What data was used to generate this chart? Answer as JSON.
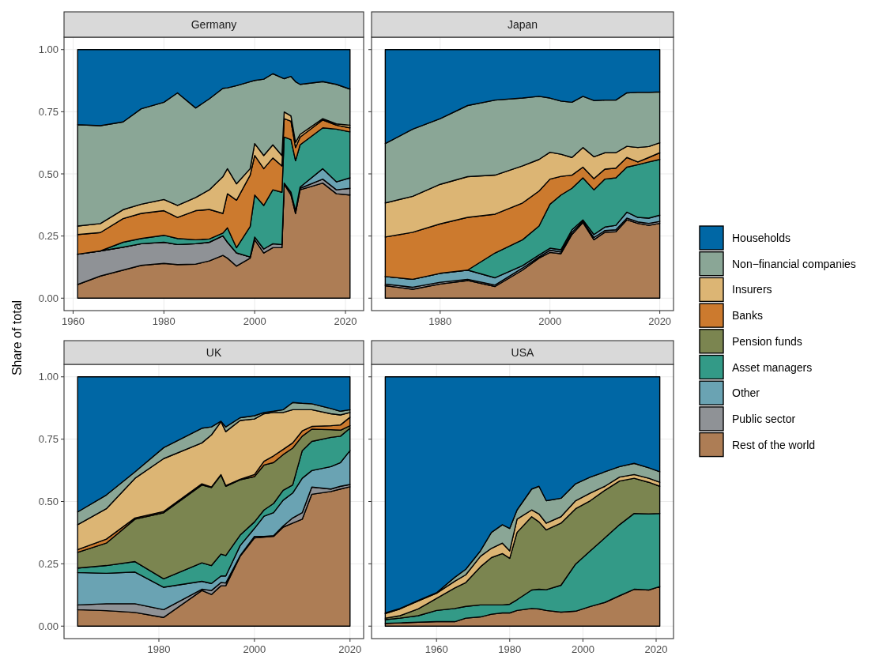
{
  "chart_data": [
    {
      "type": "area",
      "stacked": true,
      "title": "Germany",
      "ylabel": "Share of total",
      "grid": true,
      "xlim": [
        1958,
        2024
      ],
      "xticks": [
        1960,
        1980,
        2000,
        2020
      ],
      "ylim": [
        -0.05,
        1.05
      ],
      "yticks": [
        {
          "value": 0,
          "label": "0.00"
        },
        {
          "value": 0.25,
          "label": "0.25"
        },
        {
          "value": 0.5,
          "label": "0.50"
        },
        {
          "value": 0.75,
          "label": "0.75"
        },
        {
          "value": 1,
          "label": "1.00"
        }
      ],
      "x": [
        1961,
        1966,
        1971,
        1975,
        1980,
        1983,
        1987,
        1990,
        1993,
        1994,
        1996,
        1999,
        2000,
        2002,
        2004,
        2006,
        2006.5,
        2008,
        2009,
        2010,
        2015,
        2018,
        2021
      ],
      "series": [
        {
          "color": "#ad7d55",
          "values": [
            0.055,
            0.089,
            0.113,
            0.132,
            0.14,
            0.135,
            0.137,
            0.15,
            0.172,
            0.161,
            0.129,
            0.161,
            0.235,
            0.182,
            0.203,
            0.203,
            0.458,
            0.415,
            0.341,
            0.436,
            0.463,
            0.42,
            0.415
          ]
        },
        {
          "color": "#8f9296",
          "values": [
            0.122,
            0.101,
            0.092,
            0.087,
            0.085,
            0.081,
            0.082,
            0.075,
            0.079,
            0.064,
            0.053,
            0.005,
            0.011,
            0.016,
            0.016,
            0.013,
            0.005,
            0.011,
            0.011,
            0.006,
            0.016,
            0.016,
            0.027
          ]
        },
        {
          "color": "#6aa3b3",
          "values": [
            0,
            0,
            0,
            0,
            0,
            0,
            0,
            0,
            0,
            0,
            0,
            0,
            0,
            0,
            0,
            0,
            0,
            0,
            0,
            0.005,
            0.042,
            0.032,
            0.042
          ]
        },
        {
          "color": "#339a87",
          "values": [
            0,
            0,
            0.02,
            0.021,
            0.028,
            0.024,
            0.016,
            0.013,
            0.011,
            0.058,
            0.021,
            0.122,
            0.169,
            0.175,
            0.217,
            0.21,
            0.185,
            0.212,
            0.201,
            0.17,
            0.164,
            0.212,
            0.185
          ]
        },
        {
          "color": "#cc7a2e",
          "values": [
            0.079,
            0.074,
            0.095,
            0.101,
            0.099,
            0.085,
            0.117,
            0.119,
            0.079,
            0.137,
            0.191,
            0.207,
            0.159,
            0.148,
            0.128,
            0.106,
            0.074,
            0.074,
            0.053,
            0.031,
            0.032,
            0.016,
            0.016
          ]
        },
        {
          "color": "#dcb574",
          "values": [
            0.034,
            0.036,
            0.036,
            0.037,
            0.045,
            0.048,
            0.053,
            0.079,
            0.148,
            0.101,
            0.066,
            0.026,
            0.048,
            0.053,
            0.053,
            0.042,
            0.027,
            0.021,
            0.021,
            0.011,
            0.005,
            0.005,
            0.011
          ]
        },
        {
          "color": "#8aa696",
          "values": [
            0.408,
            0.394,
            0.353,
            0.384,
            0.391,
            0.453,
            0.36,
            0.366,
            0.355,
            0.325,
            0.395,
            0.35,
            0.254,
            0.307,
            0.286,
            0.313,
            0.134,
            0.159,
            0.244,
            0.201,
            0.149,
            0.159,
            0.145
          ]
        },
        {
          "color": "#0067a5",
          "values": [
            0.302,
            0.306,
            0.291,
            0.238,
            0.212,
            0.174,
            0.235,
            0.198,
            0.156,
            0.154,
            0.145,
            0.129,
            0.124,
            0.119,
            0.097,
            0.113,
            0.117,
            0.108,
            0.129,
            0.14,
            0.129,
            0.14,
            0.159
          ]
        }
      ]
    },
    {
      "type": "area",
      "stacked": true,
      "title": "Japan",
      "grid": true,
      "tick_labels": "x",
      "xlim": [
        1967.5,
        2022.5
      ],
      "xticks": [
        1980,
        2000,
        2020
      ],
      "ylim": [
        -0.05,
        1.05
      ],
      "yticks": [
        {
          "value": 0,
          "label": null
        },
        {
          "value": 0.25,
          "label": null
        },
        {
          "value": 0.5,
          "label": null
        },
        {
          "value": 0.75,
          "label": null
        },
        {
          "value": 1,
          "label": null
        }
      ],
      "x": [
        1970,
        1975,
        1980,
        1985,
        1990,
        1995,
        1998,
        2000,
        2002,
        2004,
        2006,
        2008,
        2010,
        2012,
        2014,
        2016,
        2018,
        2020
      ],
      "series": [
        {
          "color": "#ad7d55",
          "values": [
            0.05,
            0.036,
            0.057,
            0.071,
            0.047,
            0.113,
            0.161,
            0.184,
            0.179,
            0.256,
            0.304,
            0.235,
            0.265,
            0.267,
            0.315,
            0.301,
            0.293,
            0.301
          ]
        },
        {
          "color": "#8f9296",
          "values": [
            0.007,
            0.008,
            0.007,
            0.005,
            0.006,
            0.008,
            0.005,
            0.009,
            0.007,
            0.009,
            0.005,
            0.009,
            0.007,
            0.008,
            0.007,
            0.006,
            0.008,
            0.008
          ]
        },
        {
          "color": "#6aa3b3",
          "values": [
            0.03,
            0.032,
            0.036,
            0.037,
            0.029,
            0.01,
            0.008,
            0.008,
            0.009,
            0.01,
            0.006,
            0.012,
            0.014,
            0.018,
            0.024,
            0.018,
            0.021,
            0.025
          ]
        },
        {
          "color": "#339a87",
          "values": [
            0,
            0,
            0,
            0,
            0.1,
            0.104,
            0.116,
            0.177,
            0.22,
            0.167,
            0.169,
            0.18,
            0.193,
            0.191,
            0.181,
            0.212,
            0.226,
            0.224
          ]
        },
        {
          "color": "#cc7a2e",
          "values": [
            0.159,
            0.189,
            0.199,
            0.212,
            0.156,
            0.148,
            0.141,
            0.101,
            0.075,
            0.053,
            0.043,
            0.045,
            0.04,
            0.039,
            0.039,
            0.011,
            0.018,
            0.027
          ]
        },
        {
          "color": "#dcb574",
          "values": [
            0.137,
            0.145,
            0.159,
            0.164,
            0.157,
            0.149,
            0.127,
            0.108,
            0.089,
            0.071,
            0.079,
            0.088,
            0.066,
            0.062,
            0.045,
            0.058,
            0.044,
            0.04
          ]
        },
        {
          "color": "#8aa696",
          "values": [
            0.239,
            0.27,
            0.264,
            0.286,
            0.302,
            0.273,
            0.254,
            0.218,
            0.214,
            0.222,
            0.206,
            0.226,
            0.212,
            0.212,
            0.215,
            0.222,
            0.218,
            0.205
          ]
        },
        {
          "color": "#0067a5",
          "values": [
            0.378,
            0.32,
            0.278,
            0.225,
            0.203,
            0.195,
            0.188,
            0.195,
            0.207,
            0.212,
            0.188,
            0.205,
            0.203,
            0.203,
            0.174,
            0.172,
            0.172,
            0.17
          ]
        }
      ]
    },
    {
      "type": "area",
      "stacked": true,
      "title": "UK",
      "grid": true,
      "legend": "right",
      "xlim": [
        1960.15,
        2022.85
      ],
      "xticks": [
        1980,
        2000,
        2020
      ],
      "ylim": [
        -0.05,
        1.05
      ],
      "yticks": [
        {
          "value": 0,
          "label": "0.00"
        },
        {
          "value": 0.25,
          "label": "0.25"
        },
        {
          "value": 0.5,
          "label": "0.50"
        },
        {
          "value": 0.75,
          "label": "0.75"
        },
        {
          "value": 1,
          "label": "1.00"
        }
      ],
      "x": [
        1963,
        1969,
        1975,
        1981,
        1989,
        1991,
        1993,
        1994,
        1997,
        2000,
        2002,
        2004,
        2006,
        2008,
        2010,
        2012,
        2016,
        2018,
        2020
      ],
      "series": [
        {
          "name": "Rest of the world",
          "color": "#ad7d55",
          "values": [
            0.066,
            0.062,
            0.055,
            0.035,
            0.143,
            0.127,
            0.162,
            0.162,
            0.28,
            0.354,
            0.357,
            0.36,
            0.397,
            0.413,
            0.429,
            0.529,
            0.54,
            0.55,
            0.559
          ]
        },
        {
          "name": "Public sector",
          "color": "#8f9296",
          "values": [
            0.019,
            0.028,
            0.035,
            0.031,
            0.005,
            0.016,
            0.013,
            0.011,
            0.003,
            0.006,
            0.003,
            0.003,
            0.005,
            0.021,
            0.026,
            0.029,
            0.01,
            0.011,
            0.009
          ]
        },
        {
          "name": "Other",
          "color": "#6aa3b3",
          "values": [
            0.13,
            0.122,
            0.127,
            0.09,
            0.032,
            0.028,
            0.026,
            0.028,
            0.04,
            0.032,
            0.081,
            0.092,
            0.103,
            0.1,
            0.138,
            0.066,
            0.09,
            0.095,
            0.136
          ]
        },
        {
          "name": "Asset managers",
          "color": "#339a87",
          "values": [
            0.018,
            0.031,
            0.042,
            0.034,
            0.074,
            0.072,
            0.088,
            0.082,
            0.042,
            0.026,
            0.025,
            0.037,
            0.04,
            0.032,
            0.111,
            0.117,
            0.117,
            0.106,
            0.09
          ]
        },
        {
          "name": "Pension funds",
          "color": "#7b8550",
          "values": [
            0.063,
            0.09,
            0.17,
            0.265,
            0.312,
            0.313,
            0.317,
            0.278,
            0.222,
            0.182,
            0.18,
            0.164,
            0.143,
            0.148,
            0.058,
            0.049,
            0.031,
            0.024,
            0.01
          ]
        },
        {
          "name": "Banks",
          "color": "#cc7a2e",
          "values": [
            0.011,
            0.016,
            0.005,
            0.005,
            0.005,
            0.002,
            0.002,
            0.003,
            0.002,
            0.008,
            0.015,
            0.027,
            0.021,
            0.021,
            0.021,
            0.011,
            0.016,
            0.021,
            0.034
          ]
        },
        {
          "name": "Insurers",
          "color": "#dcb574",
          "values": [
            0.1,
            0.122,
            0.159,
            0.212,
            0.164,
            0.209,
            0.212,
            0.216,
            0.236,
            0.223,
            0.191,
            0.174,
            0.148,
            0.133,
            0.085,
            0.067,
            0.048,
            0.04,
            0.019
          ]
        },
        {
          "name": "Non−financial companies",
          "color": "#8aa696",
          "values": [
            0.051,
            0.055,
            0.026,
            0.044,
            0.059,
            0.032,
            0.002,
            0.019,
            0.011,
            0.013,
            0.005,
            0.005,
            0.011,
            0.029,
            0.026,
            0.024,
            0.021,
            0.015,
            0.011
          ]
        },
        {
          "name": "Households",
          "color": "#0067a5",
          "values": [
            0.542,
            0.474,
            0.381,
            0.284,
            0.206,
            0.201,
            0.178,
            0.201,
            0.164,
            0.156,
            0.143,
            0.138,
            0.132,
            0.103,
            0.106,
            0.108,
            0.127,
            0.138,
            0.132
          ]
        }
      ]
    },
    {
      "type": "area",
      "stacked": true,
      "title": "USA",
      "grid": true,
      "tick_labels": "x",
      "xlim": [
        1942.25,
        2024.75
      ],
      "xticks": [
        1960,
        1980,
        2000,
        2020
      ],
      "ylim": [
        -0.05,
        1.05
      ],
      "yticks": [
        {
          "value": 0,
          "label": null
        },
        {
          "value": 0.25,
          "label": null
        },
        {
          "value": 0.5,
          "label": null
        },
        {
          "value": 0.75,
          "label": null
        },
        {
          "value": 1,
          "label": null
        }
      ],
      "x": [
        1946,
        1950,
        1955,
        1960,
        1965,
        1968,
        1972,
        1975,
        1978,
        1980,
        1982,
        1986,
        1988,
        1990,
        1994,
        1998,
        2002,
        2006,
        2010,
        2014,
        2018,
        2021
      ],
      "series": [
        {
          "color": "#ad7d55",
          "values": [
            0.011,
            0.013,
            0.016,
            0.018,
            0.018,
            0.032,
            0.037,
            0.048,
            0.053,
            0.053,
            0.063,
            0.071,
            0.069,
            0.063,
            0.056,
            0.06,
            0.079,
            0.095,
            0.122,
            0.148,
            0.145,
            0.159
          ]
        },
        {
          "color": "#339a87",
          "values": [
            0.015,
            0.019,
            0.026,
            0.045,
            0.053,
            0.047,
            0.048,
            0.037,
            0.032,
            0.035,
            0.043,
            0.074,
            0.079,
            0.083,
            0.108,
            0.189,
            0.223,
            0.259,
            0.285,
            0.304,
            0.305,
            0.293
          ]
        },
        {
          "color": "#7b8550",
          "values": [
            0.006,
            0.01,
            0.027,
            0.048,
            0.082,
            0.096,
            0.153,
            0.19,
            0.206,
            0.184,
            0.27,
            0.294,
            0.27,
            0.24,
            0.249,
            0.222,
            0.201,
            0.191,
            0.175,
            0.141,
            0.127,
            0.109
          ]
        },
        {
          "color": "#dcb574",
          "values": [
            0.018,
            0.027,
            0.032,
            0.021,
            0.027,
            0.031,
            0.042,
            0.037,
            0.042,
            0.03,
            0.053,
            0.027,
            0.032,
            0.027,
            0.026,
            0.032,
            0.031,
            0.016,
            0.016,
            0.015,
            0.016,
            0.016
          ]
        },
        {
          "color": "#8aa696",
          "values": [
            0.003,
            0.002,
            0.002,
            0.002,
            0.016,
            0.022,
            0.022,
            0.064,
            0.074,
            0.09,
            0.037,
            0.084,
            0.111,
            0.09,
            0.074,
            0.068,
            0.064,
            0.058,
            0.042,
            0.045,
            0.042,
            0.042
          ]
        },
        {
          "color": "#0067a5",
          "values": [
            0.947,
            0.929,
            0.897,
            0.866,
            0.804,
            0.772,
            0.698,
            0.624,
            0.593,
            0.608,
            0.534,
            0.45,
            0.439,
            0.497,
            0.487,
            0.429,
            0.402,
            0.381,
            0.36,
            0.347,
            0.365,
            0.381
          ]
        }
      ]
    }
  ]
}
